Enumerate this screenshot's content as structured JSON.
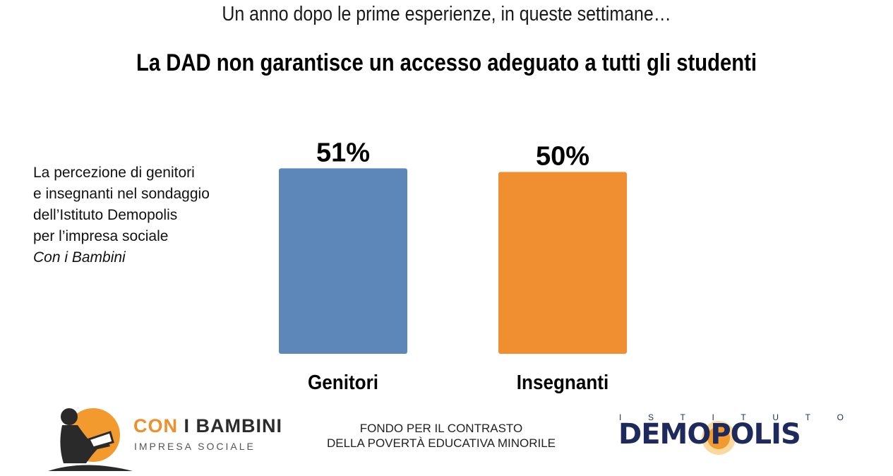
{
  "header": {
    "subtitle": "Un anno dopo le prime esperienze, in queste settimane…",
    "title": "La DAD non garantisce un accesso adeguato a tutti gli studenti"
  },
  "side_note": {
    "lines": [
      "La percezione di genitori",
      "e insegnanti nel sondaggio",
      "dell’Istituto Demopolis",
      "per l’impresa sociale"
    ],
    "italic_line": "Con i Bambini"
  },
  "chart_data": {
    "type": "bar",
    "categories": [
      "Genitori",
      "Insegnanti"
    ],
    "values": [
      51,
      50
    ],
    "value_labels": [
      "51%",
      "50%"
    ],
    "unit": "%",
    "ylim": [
      0,
      60
    ],
    "colors": [
      "#5e87b9",
      "#ef8f32"
    ],
    "grid": false,
    "legend": "none"
  },
  "footer": {
    "left_logo": {
      "name_orange": "CON",
      "name_dark": "I BAMBINI",
      "tagline": "IMPRESA SOCIALE"
    },
    "center_text": [
      "FONDO PER IL CONTRASTO",
      "DELLA POVERTÀ EDUCATIVA MINORILE"
    ],
    "right_logo": {
      "top_letters": [
        "I",
        "S",
        "T",
        "I",
        "T",
        "U",
        "T",
        "O"
      ],
      "name": "DEMOPOLIS"
    }
  }
}
